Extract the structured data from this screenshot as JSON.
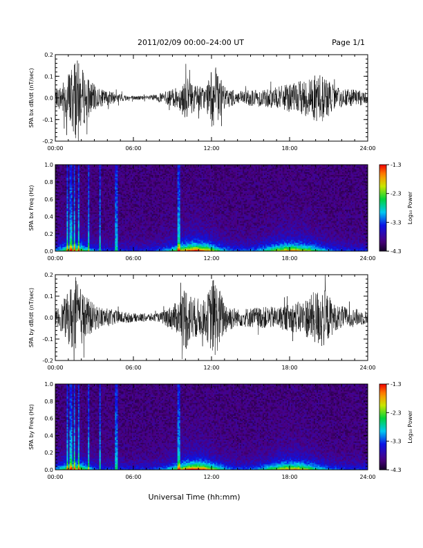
{
  "header": {
    "title": "2011/02/09  00:00–24:00 UT",
    "page": "Page 1/1"
  },
  "footer": {
    "xlabel": "Universal Time (hh:mm)"
  },
  "colorbar": {
    "label": "Log₁₀ Power",
    "ticks": [
      "-1.3",
      "-2.3",
      "-3.3",
      "-4.3"
    ],
    "range": [
      -4.3,
      -1.3
    ]
  },
  "chart_data": [
    {
      "type": "line",
      "id": "bx-waveform",
      "ylabel": "SPA bx dB/dt (nT/sec)",
      "xlim": [
        0,
        24
      ],
      "ylim": [
        -0.2,
        0.2
      ],
      "x_ticks": [
        "00:00",
        "06:00",
        "12:00",
        "18:00",
        "24:00"
      ],
      "y_ticks": [
        "-0.2",
        "-0.1",
        "0.0",
        "0.1",
        "0.2"
      ],
      "grid": false,
      "envelope": [
        {
          "x": 0.0,
          "y": 0.03
        },
        {
          "x": 0.5,
          "y": 0.07
        },
        {
          "x": 1.0,
          "y": 0.12
        },
        {
          "x": 1.5,
          "y": 0.2
        },
        {
          "x": 2.0,
          "y": 0.14
        },
        {
          "x": 3.0,
          "y": 0.06
        },
        {
          "x": 3.5,
          "y": 0.04
        },
        {
          "x": 5.0,
          "y": 0.02
        },
        {
          "x": 6.0,
          "y": 0.01
        },
        {
          "x": 7.0,
          "y": 0.01
        },
        {
          "x": 8.0,
          "y": 0.02
        },
        {
          "x": 9.5,
          "y": 0.05
        },
        {
          "x": 10.0,
          "y": 0.1
        },
        {
          "x": 10.5,
          "y": 0.07
        },
        {
          "x": 11.5,
          "y": 0.05
        },
        {
          "x": 12.2,
          "y": 0.16
        },
        {
          "x": 13.0,
          "y": 0.05
        },
        {
          "x": 14.0,
          "y": 0.03
        },
        {
          "x": 15.5,
          "y": 0.04
        },
        {
          "x": 17.0,
          "y": 0.05
        },
        {
          "x": 19.0,
          "y": 0.08
        },
        {
          "x": 20.5,
          "y": 0.12
        },
        {
          "x": 21.5,
          "y": 0.05
        },
        {
          "x": 24.0,
          "y": 0.03
        }
      ]
    },
    {
      "type": "heatmap",
      "id": "bx-spectrogram",
      "ylabel": "SPA bx Freq (Hz)",
      "xlim": [
        0,
        24
      ],
      "ylim": [
        0,
        1.0
      ],
      "x_ticks": [
        "00:00",
        "06:00",
        "12:00",
        "18:00",
        "24:00"
      ],
      "y_ticks": [
        "0.0",
        "0.2",
        "0.4",
        "0.6",
        "0.8",
        "1.0"
      ],
      "value_range": [
        -4.3,
        -1.3
      ]
    },
    {
      "type": "line",
      "id": "by-waveform",
      "ylabel": "SPA by dB/dt (nT/sec)",
      "xlim": [
        0,
        24
      ],
      "ylim": [
        -0.2,
        0.2
      ],
      "x_ticks": [
        "00:00",
        "06:00",
        "12:00",
        "18:00",
        "24:00"
      ],
      "y_ticks": [
        "-0.2",
        "-0.1",
        "0.0",
        "0.1",
        "0.2"
      ],
      "grid": false,
      "envelope": [
        {
          "x": 0.0,
          "y": 0.03
        },
        {
          "x": 0.5,
          "y": 0.07
        },
        {
          "x": 1.0,
          "y": 0.12
        },
        {
          "x": 1.5,
          "y": 0.2
        },
        {
          "x": 2.0,
          "y": 0.13
        },
        {
          "x": 3.0,
          "y": 0.06
        },
        {
          "x": 3.5,
          "y": 0.05
        },
        {
          "x": 5.0,
          "y": 0.03
        },
        {
          "x": 6.0,
          "y": 0.02
        },
        {
          "x": 7.0,
          "y": 0.02
        },
        {
          "x": 8.0,
          "y": 0.02
        },
        {
          "x": 9.5,
          "y": 0.08
        },
        {
          "x": 10.0,
          "y": 0.16
        },
        {
          "x": 10.5,
          "y": 0.1
        },
        {
          "x": 11.5,
          "y": 0.08
        },
        {
          "x": 12.2,
          "y": 0.2
        },
        {
          "x": 13.0,
          "y": 0.08
        },
        {
          "x": 14.0,
          "y": 0.04
        },
        {
          "x": 15.5,
          "y": 0.05
        },
        {
          "x": 17.0,
          "y": 0.05
        },
        {
          "x": 19.0,
          "y": 0.08
        },
        {
          "x": 20.5,
          "y": 0.15
        },
        {
          "x": 21.5,
          "y": 0.06
        },
        {
          "x": 24.0,
          "y": 0.03
        }
      ]
    },
    {
      "type": "heatmap",
      "id": "by-spectrogram",
      "ylabel": "SPA by Freq (Hz)",
      "xlim": [
        0,
        24
      ],
      "ylim": [
        0,
        1.0
      ],
      "x_ticks": [
        "00:00",
        "06:00",
        "12:00",
        "18:00",
        "24:00"
      ],
      "y_ticks": [
        "0.0",
        "0.2",
        "0.4",
        "0.6",
        "0.8",
        "1.0"
      ],
      "value_range": [
        -4.3,
        -1.3
      ]
    }
  ]
}
